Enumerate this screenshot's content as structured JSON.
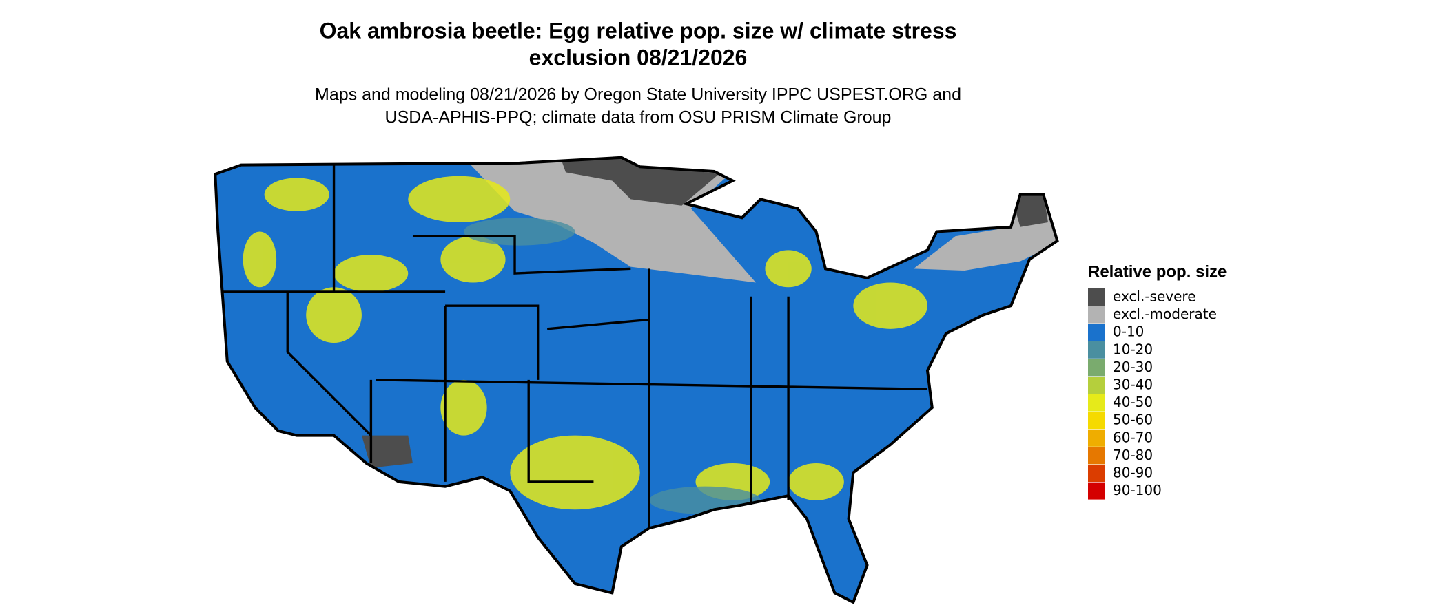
{
  "title": [
    "Oak ambrosia beetle: Egg relative pop. size w/ climate stress",
    "exclusion 08/21/2026"
  ],
  "subtitle": [
    "Maps and modeling 08/21/2026 by Oregon State University IPPC USPEST.ORG and",
    "USDA-APHIS-PPQ; climate data from OSU PRISM Climate Group"
  ],
  "legend": {
    "title": "Relative pop. size",
    "items": [
      {
        "label": "excl.-severe",
        "color": "#4d4d4d"
      },
      {
        "label": "excl.-moderate",
        "color": "#b3b3b3"
      },
      {
        "label": "0-10",
        "color": "#1a72cc"
      },
      {
        "label": "10-20",
        "color": "#4a8fa0"
      },
      {
        "label": "20-30",
        "color": "#7aab6e"
      },
      {
        "label": "30-40",
        "color": "#b5cf3c"
      },
      {
        "label": "40-50",
        "color": "#e6ea1a"
      },
      {
        "label": "50-60",
        "color": "#f5da00"
      },
      {
        "label": "60-70",
        "color": "#efad00"
      },
      {
        "label": "70-80",
        "color": "#e67800"
      },
      {
        "label": "80-90",
        "color": "#db3d00"
      },
      {
        "label": "90-100",
        "color": "#d40000"
      }
    ]
  }
}
